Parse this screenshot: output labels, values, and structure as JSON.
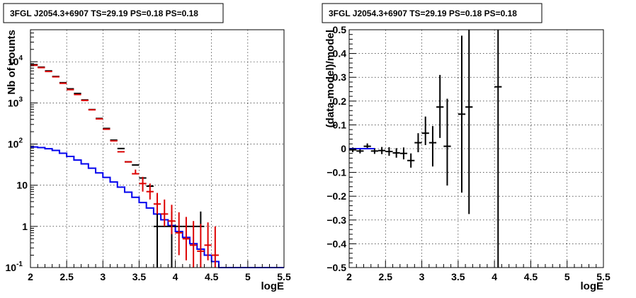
{
  "chart_data": [
    {
      "type": "histogram",
      "title": "3FGL J2054.3+6907 TS=29.19 PS=0.18 PS=0.18",
      "xlabel": "logE",
      "ylabel": "Nb of counts",
      "xlim": [
        2,
        5.5
      ],
      "ylim": [
        0.1,
        60000
      ],
      "yscale": "log",
      "grid": true,
      "x_ticks": [
        "2",
        "2.5",
        "3",
        "3.5",
        "4",
        "4.5",
        "5",
        "5.5"
      ],
      "y_ticks": [
        {
          "v": 0.1,
          "base": "10",
          "exp": "-1"
        },
        {
          "v": 1,
          "base": "1",
          "exp": ""
        },
        {
          "v": 10,
          "base": "10",
          "exp": ""
        },
        {
          "v": 100,
          "base": "10",
          "exp": "2"
        },
        {
          "v": 1000,
          "base": "10",
          "exp": "3"
        },
        {
          "v": 10000,
          "base": "10",
          "exp": "4"
        }
      ],
      "series": [
        {
          "kind": "step",
          "color": "#0000ee",
          "bins": [
            2.0,
            2.1,
            2.2,
            2.3,
            2.4,
            2.5,
            2.6,
            2.7,
            2.8,
            2.9,
            3.0,
            3.1,
            3.2,
            3.3,
            3.4,
            3.5,
            3.6,
            3.7,
            3.8,
            3.9,
            4.0,
            4.1,
            4.2,
            4.3,
            4.4,
            4.5,
            4.6,
            5.5
          ],
          "values": [
            85,
            82,
            77,
            70,
            60,
            50,
            41,
            33,
            26,
            20,
            15.5,
            12,
            9,
            6.8,
            5.1,
            3.8,
            2.8,
            2.0,
            1.45,
            1.05,
            0.75,
            0.54,
            0.38,
            0.28,
            0.2,
            0.14,
            0.1
          ]
        },
        {
          "kind": "points",
          "color": "#000000",
          "x": [
            2.05,
            2.15,
            2.25,
            2.35,
            2.45,
            2.55,
            2.65,
            2.75,
            2.85,
            2.95,
            3.05,
            3.15,
            3.25,
            3.35,
            3.45,
            3.55,
            3.65,
            3.75,
            3.85,
            3.95,
            4.05,
            4.15,
            4.25,
            4.35
          ],
          "y": [
            8500,
            7400,
            6000,
            4400,
            3100,
            2200,
            1700,
            1180,
            690,
            420,
            240,
            125,
            78,
            37,
            31,
            15,
            9.5,
            1,
            1,
            1,
            1,
            1,
            1,
            1
          ],
          "yerr_lo": [
            0,
            0,
            0,
            0,
            0,
            0,
            0,
            0,
            0,
            0,
            0,
            0,
            0,
            0,
            0,
            0,
            0,
            0.9,
            0,
            0.9,
            0,
            0,
            0,
            0
          ],
          "yerr_hi": [
            0,
            0,
            0,
            0,
            0,
            0,
            0,
            0,
            0,
            0,
            0,
            0,
            0,
            0,
            0,
            0,
            0,
            1.3,
            0,
            1.3,
            0,
            0,
            0,
            1.3
          ]
        },
        {
          "kind": "points",
          "color": "#dd0000",
          "x": [
            2.05,
            2.15,
            2.25,
            2.35,
            2.45,
            2.55,
            2.65,
            2.75,
            2.85,
            2.95,
            3.05,
            3.15,
            3.25,
            3.35,
            3.45,
            3.55,
            3.65,
            3.75,
            3.85,
            3.95,
            4.05,
            4.15,
            4.25,
            4.35,
            4.45,
            4.55
          ],
          "y": [
            8200,
            7200,
            5800,
            4300,
            3000,
            2100,
            1600,
            1150,
            680,
            410,
            230,
            120,
            65,
            37,
            19,
            11,
            7,
            3.5,
            2,
            1.35,
            0.7,
            0.5,
            0.35,
            0.25,
            0.35,
            0.2
          ],
          "yerr_lo": [
            0,
            0,
            0,
            0,
            0,
            0,
            0,
            0,
            0,
            0,
            0,
            0,
            0,
            0,
            0,
            4,
            2.5,
            1.5,
            1,
            0.7,
            0.5,
            0.35,
            0.25,
            0.15,
            0.2,
            0.1
          ],
          "yerr_hi": [
            0,
            0,
            0,
            0,
            0,
            0,
            0,
            0,
            0,
            0,
            0,
            0,
            0,
            0,
            5,
            5,
            4,
            3,
            2.5,
            2.0,
            1.5,
            1.2,
            1.0,
            0.9,
            0.9,
            0.8
          ]
        }
      ]
    },
    {
      "type": "scatter",
      "title": "3FGL J2054.3+6907 TS=29.19 PS=0.18 PS=0.18",
      "xlabel": "logE",
      "ylabel": "(data-model)/model",
      "xlim": [
        2,
        5.5
      ],
      "ylim": [
        -0.5,
        0.5
      ],
      "grid": true,
      "x_ticks": [
        "2",
        "2.5",
        "3",
        "3.5",
        "4",
        "4.5",
        "5",
        "5.5"
      ],
      "y_ticks": [
        "-0.5",
        "-0.4",
        "-0.3",
        "-0.2",
        "-0.1",
        "0",
        "0.1",
        "0.2",
        "0.3",
        "0.4",
        "0.5"
      ],
      "baseline": {
        "color": "#0000ee",
        "x": [
          2.0,
          2.35
        ],
        "y": 0
      },
      "series": [
        {
          "color": "#000000",
          "x": [
            2.05,
            2.15,
            2.25,
            2.35,
            2.45,
            2.55,
            2.65,
            2.75,
            2.85,
            2.95,
            3.05,
            3.15,
            3.25,
            3.35,
            3.55,
            3.65,
            4.05
          ],
          "y": [
            -0.005,
            -0.01,
            0.01,
            -0.01,
            -0.008,
            -0.012,
            -0.018,
            -0.02,
            -0.05,
            0.025,
            0.065,
            0.025,
            0.175,
            0.01,
            0.145,
            0.175,
            0.26
          ],
          "yerr_lo": [
            0.01,
            0.01,
            0.012,
            0.012,
            0.015,
            0.018,
            0.02,
            0.025,
            0.03,
            0.04,
            0.05,
            0.1,
            0.13,
            0.165,
            0.33,
            0.45,
            0.8
          ],
          "yerr_hi": [
            0.01,
            0.01,
            0.012,
            0.012,
            0.015,
            0.018,
            0.02,
            0.025,
            0.03,
            0.04,
            0.07,
            0.07,
            0.135,
            0.2,
            0.33,
            0.33,
            0.3
          ]
        }
      ]
    }
  ]
}
